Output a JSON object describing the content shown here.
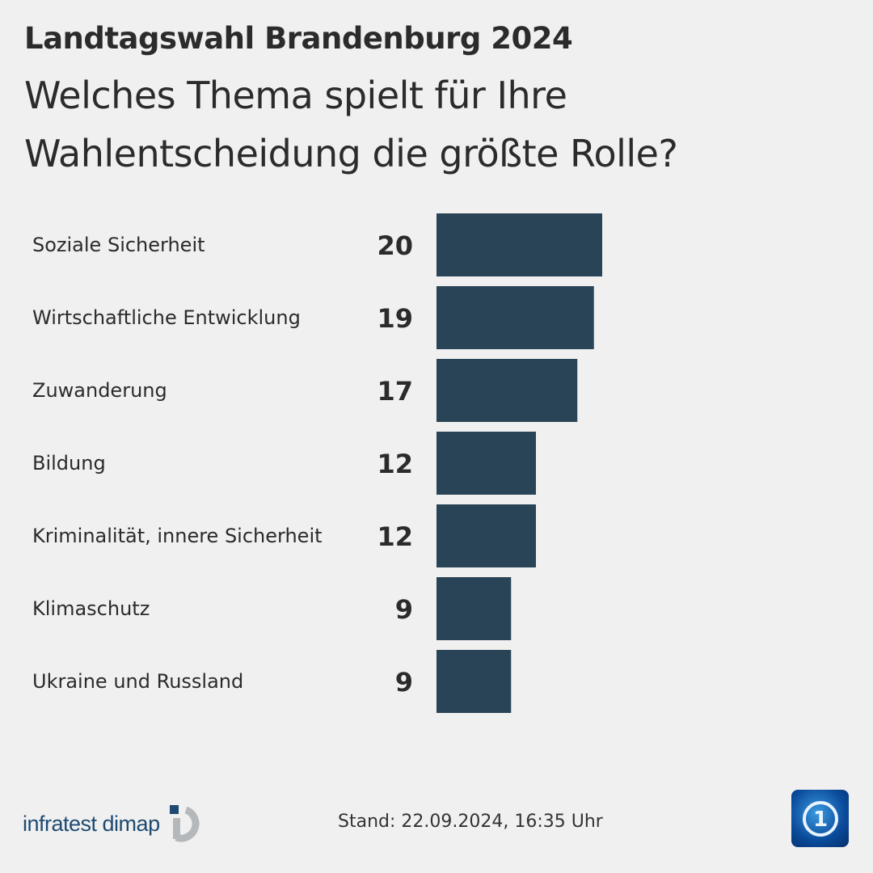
{
  "header": {
    "kicker": "Landtagswahl Brandenburg 2024",
    "title": "Welches Thema spielt für Ihre Wahlentscheidung die größte Rolle?"
  },
  "chart_data": {
    "type": "bar",
    "orientation": "horizontal",
    "categories": [
      "Soziale Sicherheit",
      "Wirtschaftliche Entwicklung",
      "Zuwanderung",
      "Bildung",
      "Kriminalität, innere Sicherheit",
      "Klimaschutz",
      "Ukraine und Russland"
    ],
    "values": [
      20,
      19,
      17,
      12,
      12,
      9,
      9
    ],
    "title": "Welches Thema spielt für Ihre Wahlentscheidung die größte Rolle?",
    "xlabel": "",
    "ylabel": "",
    "grid": false,
    "bar_color": "#2a4457"
  },
  "footer": {
    "source": "infratest dimap",
    "stand": "Stand:  22.09.2024, 16:35 Uhr",
    "broadcaster_logo": "tagesschau-logo"
  }
}
